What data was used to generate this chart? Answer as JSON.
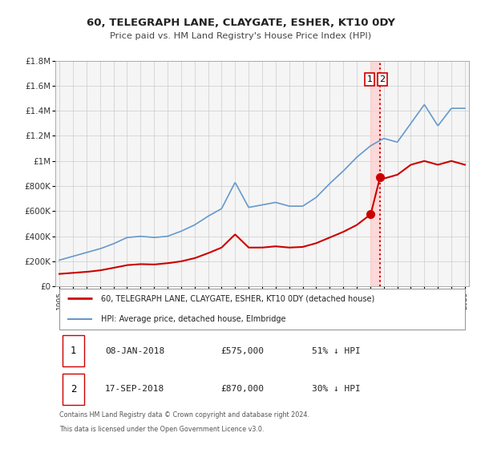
{
  "title": "60, TELEGRAPH LANE, CLAYGATE, ESHER, KT10 0DY",
  "subtitle": "Price paid vs. HM Land Registry's House Price Index (HPI)",
  "legend_line1": "60, TELEGRAPH LANE, CLAYGATE, ESHER, KT10 0DY (detached house)",
  "legend_line2": "HPI: Average price, detached house, Elmbridge",
  "annotation1_label": "1",
  "annotation1_date": "08-JAN-2018",
  "annotation1_price": "£575,000",
  "annotation1_hpi": "51% ↓ HPI",
  "annotation2_label": "2",
  "annotation2_date": "17-SEP-2018",
  "annotation2_price": "£870,000",
  "annotation2_hpi": "30% ↓ HPI",
  "footnote1": "Contains HM Land Registry data © Crown copyright and database right 2024.",
  "footnote2": "This data is licensed under the Open Government Licence v3.0.",
  "red_line_color": "#cc0000",
  "blue_line_color": "#6699cc",
  "marker_color": "#cc0000",
  "vline_color": "#cc0000",
  "vshade_color": "#ffcccc",
  "grid_color": "#cccccc",
  "bg_color": "#ffffff",
  "plot_bg_color": "#f5f5f5",
  "xmin": 1995,
  "xmax": 2025,
  "ymin": 0,
  "ymax": 1800000,
  "yticks": [
    0,
    200000,
    400000,
    600000,
    800000,
    1000000,
    1200000,
    1400000,
    1600000,
    1800000
  ],
  "ytick_labels": [
    "£0",
    "£200K",
    "£400K",
    "£600K",
    "£800K",
    "£1M",
    "£1.2M",
    "£1.4M",
    "£1.6M",
    "£1.8M"
  ],
  "sale1_x": 2018.03,
  "sale1_y": 575000,
  "sale2_x": 2018.72,
  "sale2_y": 870000,
  "vline_x": 2018.72,
  "vshade_x1": 2018.03,
  "vshade_x2": 2018.72,
  "hpi_anchors_x": [
    1995,
    1996,
    1997,
    1998,
    1999,
    2000,
    2001,
    2002,
    2003,
    2004,
    2005,
    2006,
    2007,
    2008,
    2009,
    2010,
    2011,
    2012,
    2013,
    2014,
    2015,
    2016,
    2017,
    2018,
    2019,
    2020,
    2021,
    2022,
    2023,
    2024,
    2025
  ],
  "hpi_anchors_y": [
    210000,
    240000,
    270000,
    300000,
    340000,
    390000,
    400000,
    390000,
    400000,
    440000,
    490000,
    560000,
    620000,
    830000,
    630000,
    650000,
    670000,
    640000,
    640000,
    710000,
    820000,
    920000,
    1030000,
    1120000,
    1180000,
    1150000,
    1300000,
    1450000,
    1280000,
    1420000,
    1420000
  ],
  "red_anchors_x": [
    1995,
    1996,
    1997,
    1998,
    1999,
    2000,
    2001,
    2002,
    2003,
    2004,
    2005,
    2006,
    2007,
    2008,
    2009,
    2010,
    2011,
    2012,
    2013,
    2014,
    2015,
    2016,
    2017,
    2018.03,
    2018.72,
    2019,
    2020,
    2021,
    2022,
    2023,
    2024,
    2025
  ],
  "red_anchors_y": [
    100000,
    108000,
    116000,
    128000,
    148000,
    170000,
    178000,
    175000,
    185000,
    200000,
    225000,
    265000,
    310000,
    415000,
    310000,
    310000,
    320000,
    310000,
    315000,
    345000,
    390000,
    435000,
    490000,
    575000,
    870000,
    860000,
    890000,
    970000,
    1000000,
    970000,
    1000000,
    970000
  ]
}
